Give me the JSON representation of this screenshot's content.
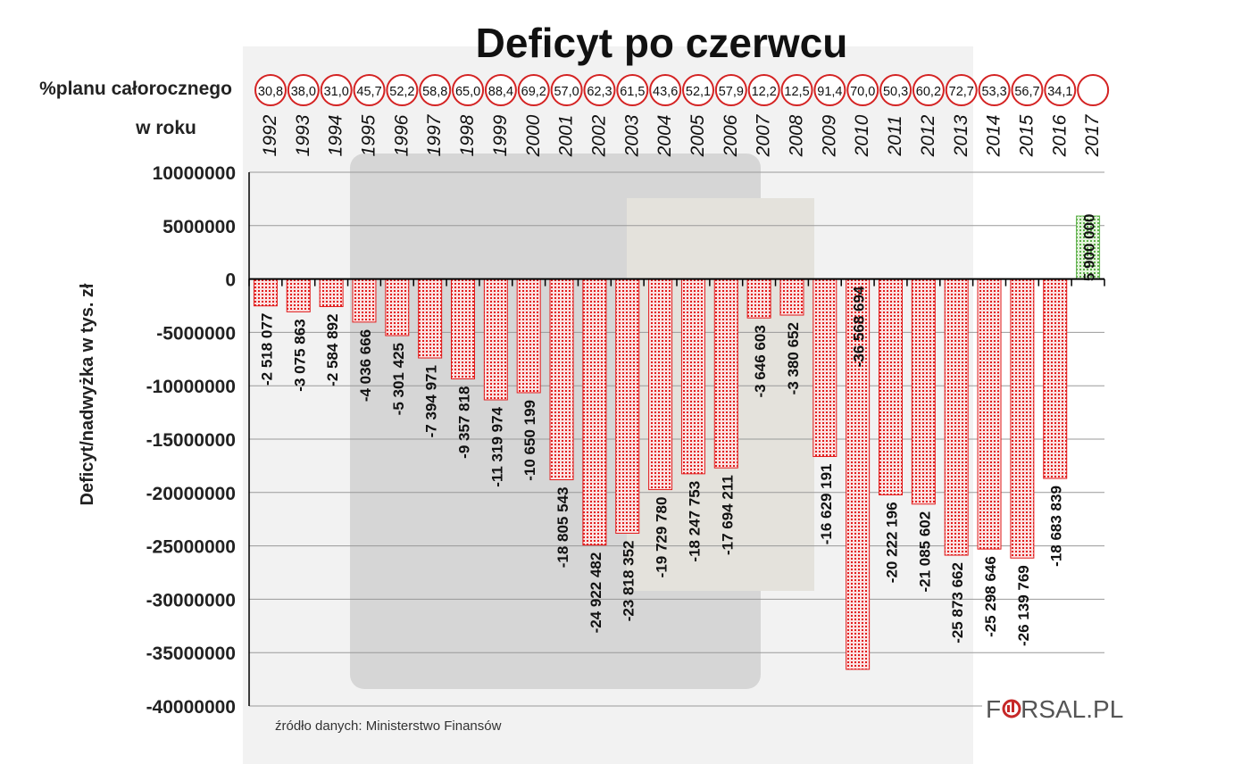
{
  "chart_data": {
    "type": "bar",
    "title": "Deficyt po czerwcu",
    "ylabel": "Deficyt/nadwyżka w tys. zł",
    "percent_row_label": "%planu całorocznego",
    "year_row_label": "w roku",
    "ylim": [
      -40000000,
      10000000
    ],
    "yticks": [
      10000000,
      5000000,
      0,
      -5000000,
      -10000000,
      -15000000,
      -20000000,
      -25000000,
      -30000000,
      -35000000,
      -40000000
    ],
    "ytick_labels": [
      "10000000",
      "5000000",
      "0",
      "-5000000",
      "-10000000",
      "-15000000",
      "-20000000",
      "-25000000",
      "-30000000",
      "-35000000",
      "-40000000"
    ],
    "categories": [
      "1992",
      "1993",
      "1994",
      "1995",
      "1996",
      "1997",
      "1998",
      "1999",
      "2000",
      "2001",
      "2002",
      "2003",
      "2004",
      "2005",
      "2006",
      "2007",
      "2008",
      "2009",
      "2010",
      "2011",
      "2012",
      "2013",
      "2014",
      "2015",
      "2016",
      "2017"
    ],
    "values": [
      -2518077,
      -3075863,
      -2584892,
      -4036666,
      -5301425,
      -7394971,
      -9357818,
      -11319974,
      -10650199,
      -18805543,
      -24922482,
      -23818352,
      -19729780,
      -18247753,
      -17694211,
      -3646603,
      -3380652,
      -16629191,
      -36568694,
      -20222196,
      -21085602,
      -25873662,
      -25298646,
      -26139769,
      -18683839,
      5900000
    ],
    "value_labels": [
      "-2 518 077",
      "-3 075 863",
      "-2 584 892",
      "-4 036 666",
      "-5 301 425",
      "-7 394 971",
      "-9 357 818",
      "-11 319 974",
      "-10 650 199",
      "-18 805 543",
      "-24 922 482",
      "-23 818 352",
      "-19 729 780",
      "-18 247 753",
      "-17 694 211",
      "-3 646 603",
      "-3 380 652",
      "-16 629 191",
      "-36 568 694",
      "-20 222 196",
      "-21 085 602",
      "-25 873 662",
      "-25 298 646",
      "-26 139 769",
      "-18 683 839",
      "5 900 000"
    ],
    "percent_plan": [
      "30,8",
      "38,0",
      "31,0",
      "45,7",
      "52,2",
      "58,8",
      "65,0",
      "88,4",
      "69,2",
      "57,0",
      "62,3",
      "61,5",
      "43,6",
      "52,1",
      "57,9",
      "12,2",
      "12,5",
      "91,4",
      "70,0",
      "50,3",
      "60,2",
      "72,7",
      "53,3",
      "56,7",
      "34,1",
      ""
    ],
    "colors": {
      "deficit": "#e11d1d",
      "surplus": "#5db04a",
      "circle": "#d42323"
    }
  },
  "source": "źródło danych: Ministerstwo Finansów",
  "logo": {
    "part1": "F",
    "part2": "RSAL.PL"
  }
}
